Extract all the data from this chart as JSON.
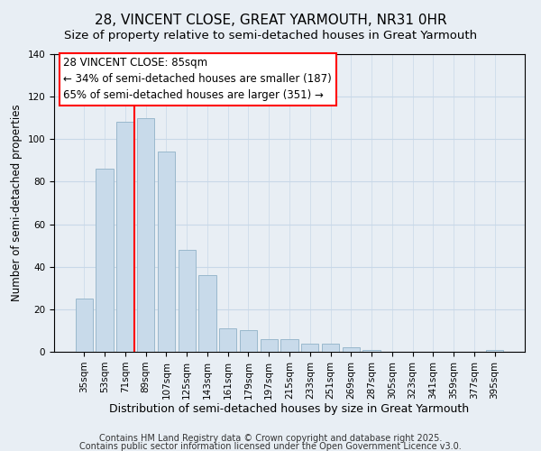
{
  "title": "28, VINCENT CLOSE, GREAT YARMOUTH, NR31 0HR",
  "subtitle": "Size of property relative to semi-detached houses in Great Yarmouth",
  "xlabel": "Distribution of semi-detached houses by size in Great Yarmouth",
  "ylabel": "Number of semi-detached properties",
  "bar_labels": [
    "35sqm",
    "53sqm",
    "71sqm",
    "89sqm",
    "107sqm",
    "125sqm",
    "143sqm",
    "161sqm",
    "179sqm",
    "197sqm",
    "215sqm",
    "233sqm",
    "251sqm",
    "269sqm",
    "287sqm",
    "305sqm",
    "323sqm",
    "341sqm",
    "359sqm",
    "377sqm",
    "395sqm"
  ],
  "bar_values": [
    25,
    86,
    108,
    110,
    94,
    48,
    36,
    11,
    10,
    6,
    6,
    4,
    4,
    2,
    1,
    0,
    0,
    0,
    0,
    0,
    1
  ],
  "bar_color": "#c8daea",
  "bar_edge_color": "#9ab8cc",
  "grid_color": "#c8d8e8",
  "annotation_line_color": "red",
  "annotation_box_text": "28 VINCENT CLOSE: 85sqm\n← 34% of semi-detached houses are smaller (187)\n65% of semi-detached houses are larger (351) →",
  "ylim": [
    0,
    140
  ],
  "yticks": [
    0,
    20,
    40,
    60,
    80,
    100,
    120,
    140
  ],
  "footnote1": "Contains HM Land Registry data © Crown copyright and database right 2025.",
  "footnote2": "Contains public sector information licensed under the Open Government Licence v3.0.",
  "bg_color": "#e8eef4",
  "title_fontsize": 11,
  "subtitle_fontsize": 9.5,
  "xlabel_fontsize": 9,
  "ylabel_fontsize": 8.5,
  "tick_fontsize": 7.5,
  "annot_fontsize": 8.5,
  "footnote_fontsize": 7
}
